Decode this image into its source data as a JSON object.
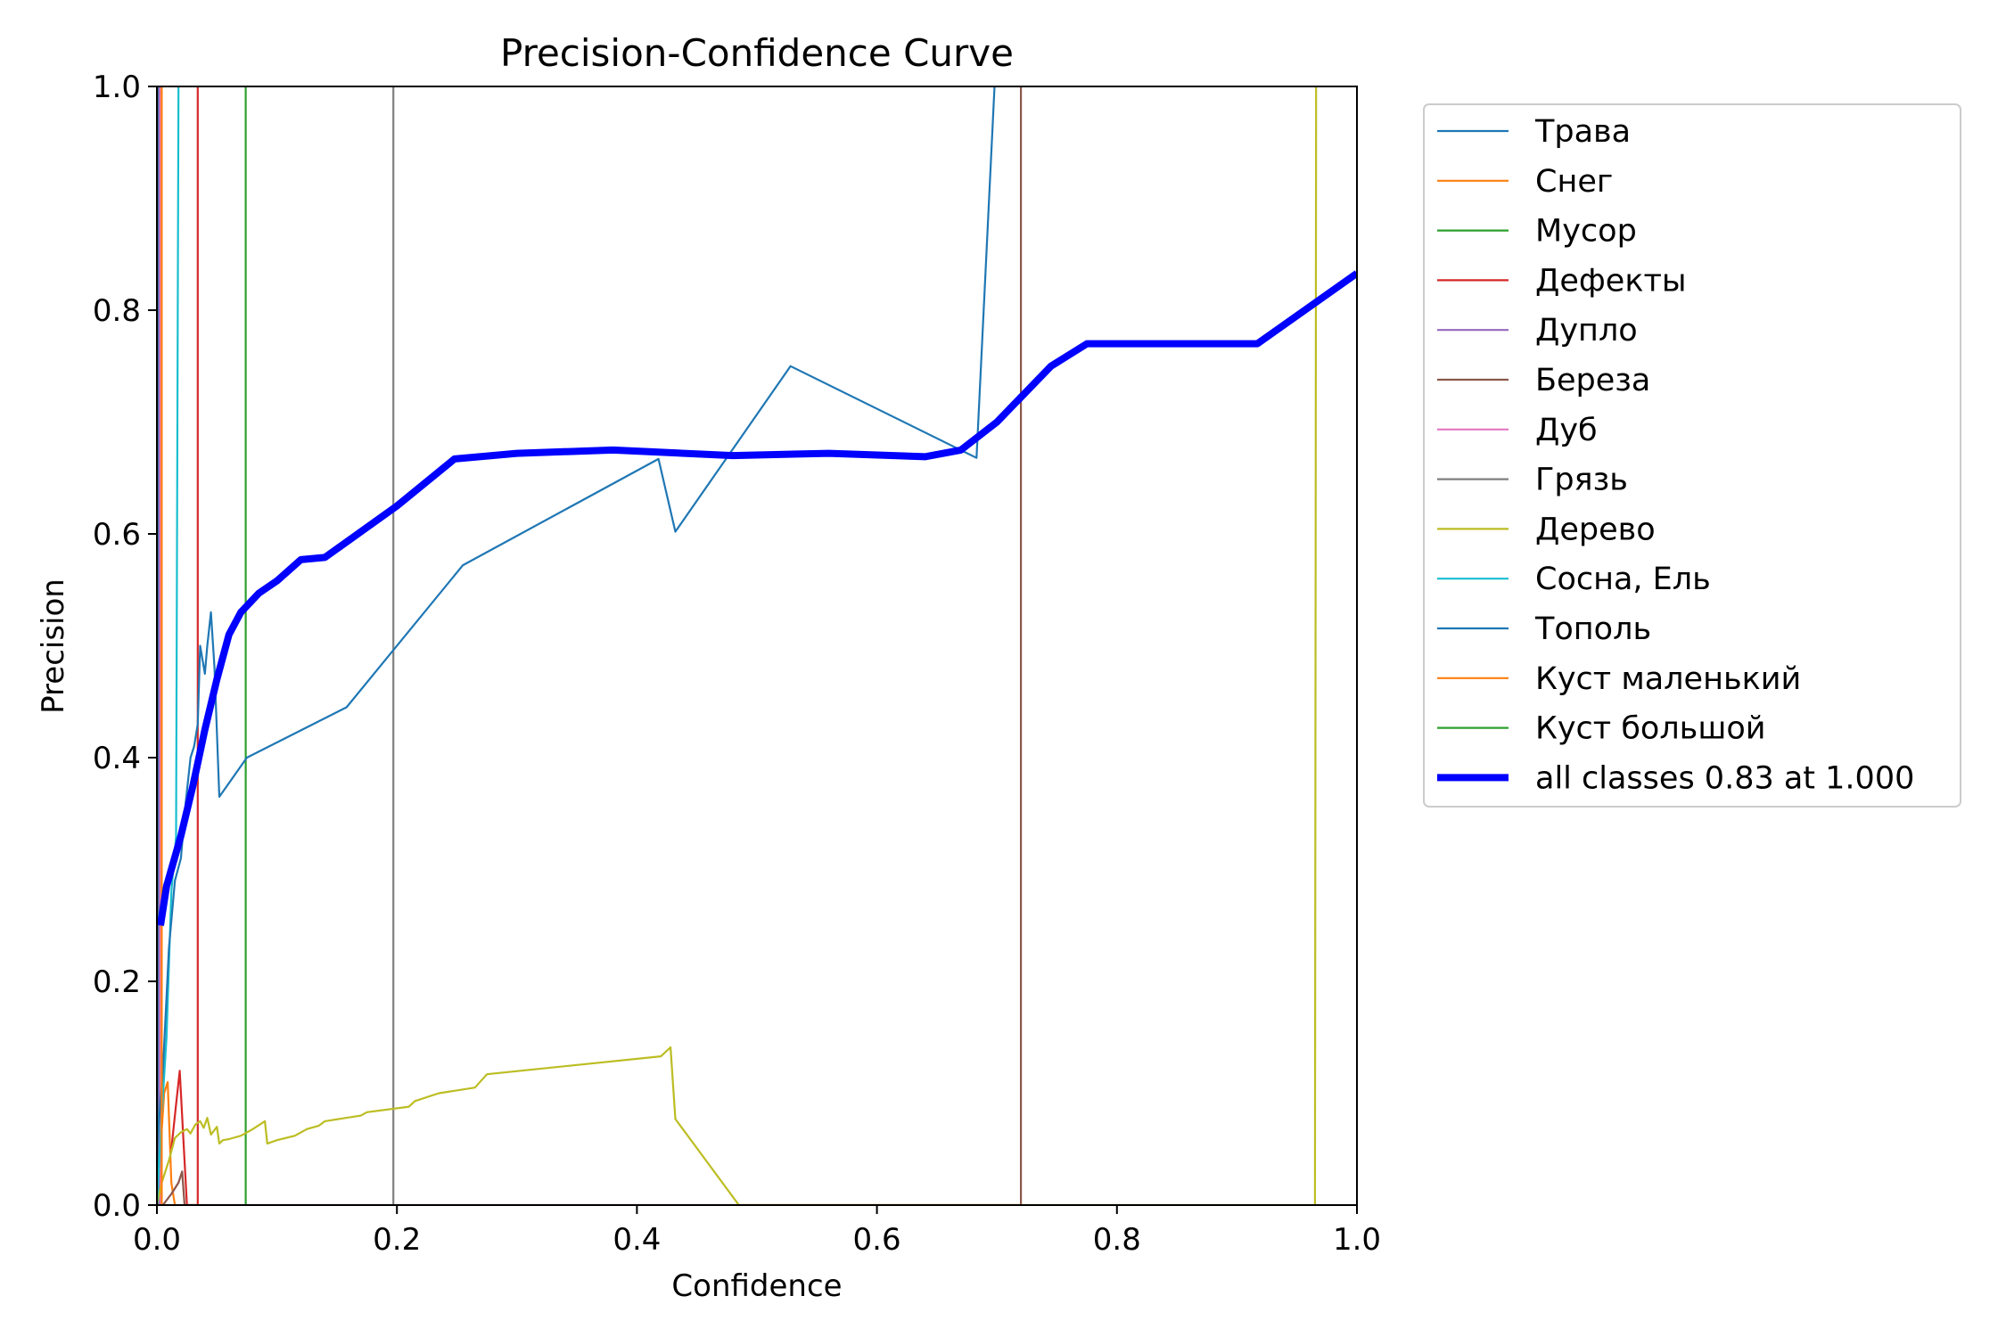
{
  "chart_data": {
    "type": "line",
    "title": "Precision-Confidence Curve",
    "xlabel": "Confidence",
    "ylabel": "Precision",
    "xlim": [
      0,
      1
    ],
    "ylim": [
      0,
      1
    ],
    "x_ticks": [
      "0.0",
      "0.2",
      "0.4",
      "0.6",
      "0.8",
      "1.0"
    ],
    "y_ticks": [
      "0.0",
      "0.2",
      "0.4",
      "0.6",
      "0.8",
      "1.0"
    ],
    "grid": false,
    "legend_position": "outside-right",
    "series": [
      {
        "name": "Трава",
        "color": "#1f77b4",
        "linewidth": "thin",
        "points": [
          [
            0.001,
            0
          ],
          [
            0.001,
            1.0
          ]
        ]
      },
      {
        "name": "Снег",
        "color": "#ff7f0e",
        "linewidth": "thin",
        "points": [
          [
            0.0,
            0.0
          ],
          [
            0.003,
            0.05
          ],
          [
            0.006,
            0.1
          ],
          [
            0.009,
            0.11
          ],
          [
            0.012,
            0.02
          ],
          [
            0.015,
            0.0
          ]
        ]
      },
      {
        "name": "Мусор",
        "color": "#2ca02c",
        "linewidth": "thin",
        "points": [
          [
            0.074,
            0
          ],
          [
            0.074,
            1.0
          ]
        ]
      },
      {
        "name": "Дефекты",
        "color": "#d62728",
        "linewidth": "thin",
        "points": [
          [
            0.012,
            0.05
          ],
          [
            0.016,
            0.09
          ],
          [
            0.019,
            0.12
          ],
          [
            0.022,
            0.06
          ],
          [
            0.025,
            0.0
          ],
          [
            0.034,
            0
          ],
          [
            0.034,
            1.0
          ]
        ]
      },
      {
        "name": "Дупло",
        "color": "#9467bd",
        "linewidth": "thin",
        "points": [
          [
            0.002,
            0
          ],
          [
            0.002,
            1.0
          ]
        ]
      },
      {
        "name": "Береза",
        "color": "#8c564b",
        "linewidth": "thin",
        "points": [
          [
            0.005,
            0.0
          ],
          [
            0.012,
            0.01
          ],
          [
            0.018,
            0.02
          ],
          [
            0.021,
            0.03
          ],
          [
            0.023,
            0.0
          ],
          [
            0.72,
            0
          ],
          [
            0.72,
            1.0
          ]
        ]
      },
      {
        "name": "Дуб",
        "color": "#e377c2",
        "linewidth": "thin",
        "points": [
          [
            0.003,
            0
          ],
          [
            0.003,
            1.0
          ]
        ]
      },
      {
        "name": "Грязь",
        "color": "#7f7f7f",
        "linewidth": "thin",
        "points": [
          [
            0.197,
            0
          ],
          [
            0.197,
            1.0
          ]
        ]
      },
      {
        "name": "Дерево",
        "color": "#bcbd22",
        "linewidth": "thin",
        "points": [
          [
            0.0,
            0.0
          ],
          [
            0.004,
            0.02
          ],
          [
            0.01,
            0.04
          ],
          [
            0.015,
            0.06
          ],
          [
            0.02,
            0.065
          ],
          [
            0.025,
            0.068
          ],
          [
            0.028,
            0.064
          ],
          [
            0.032,
            0.072
          ],
          [
            0.036,
            0.075
          ],
          [
            0.039,
            0.069
          ],
          [
            0.042,
            0.078
          ],
          [
            0.045,
            0.063
          ],
          [
            0.05,
            0.07
          ],
          [
            0.052,
            0.055
          ],
          [
            0.055,
            0.058
          ],
          [
            0.06,
            0.059
          ],
          [
            0.07,
            0.062
          ],
          [
            0.08,
            0.068
          ],
          [
            0.09,
            0.075
          ],
          [
            0.092,
            0.055
          ],
          [
            0.1,
            0.058
          ],
          [
            0.115,
            0.062
          ],
          [
            0.125,
            0.068
          ],
          [
            0.135,
            0.071
          ],
          [
            0.14,
            0.075
          ],
          [
            0.17,
            0.08
          ],
          [
            0.175,
            0.083
          ],
          [
            0.21,
            0.088
          ],
          [
            0.215,
            0.093
          ],
          [
            0.235,
            0.1
          ],
          [
            0.265,
            0.105
          ],
          [
            0.275,
            0.117
          ],
          [
            0.42,
            0.133
          ],
          [
            0.428,
            0.141
          ],
          [
            0.432,
            0.077
          ],
          [
            0.485,
            0.0
          ],
          [
            0.965,
            0.0
          ],
          [
            0.966,
            1.0
          ]
        ]
      },
      {
        "name": "Сосна, Ель",
        "color": "#17becf",
        "linewidth": "thin",
        "points": [
          [
            0.0,
            0.0
          ],
          [
            0.004,
            0.08
          ],
          [
            0.008,
            0.15
          ],
          [
            0.012,
            0.28
          ],
          [
            0.016,
            0.33
          ],
          [
            0.018,
            1.0
          ]
        ]
      },
      {
        "name": "Тополь",
        "color": "#1f77b4",
        "linewidth": "thin",
        "points": [
          [
            0.0,
            0.05
          ],
          [
            0.005,
            0.12
          ],
          [
            0.01,
            0.23
          ],
          [
            0.015,
            0.29
          ],
          [
            0.02,
            0.31
          ],
          [
            0.024,
            0.36
          ],
          [
            0.028,
            0.4
          ],
          [
            0.031,
            0.41
          ],
          [
            0.034,
            0.43
          ],
          [
            0.036,
            0.5
          ],
          [
            0.04,
            0.475
          ],
          [
            0.042,
            0.5
          ],
          [
            0.045,
            0.53
          ],
          [
            0.048,
            0.48
          ],
          [
            0.052,
            0.365
          ],
          [
            0.075,
            0.4
          ],
          [
            0.158,
            0.445
          ],
          [
            0.255,
            0.572
          ],
          [
            0.418,
            0.667
          ],
          [
            0.432,
            0.602
          ],
          [
            0.528,
            0.75
          ],
          [
            0.683,
            0.668
          ],
          [
            0.698,
            1.0
          ]
        ]
      },
      {
        "name": "Куст маленький",
        "color": "#ff7f0e",
        "linewidth": "thin",
        "points": [
          [
            0.004,
            0
          ],
          [
            0.004,
            1.0
          ]
        ]
      },
      {
        "name": "Куст большой",
        "color": "#2ca02c",
        "linewidth": "thin",
        "points": [
          [
            0.0,
            0
          ],
          [
            0.0,
            1.0
          ]
        ]
      },
      {
        "name": "all classes 0.83 at 1.000",
        "color": "#0000ff",
        "linewidth": "thick",
        "points": [
          [
            0.003,
            0.25
          ],
          [
            0.008,
            0.285
          ],
          [
            0.02,
            0.33
          ],
          [
            0.03,
            0.375
          ],
          [
            0.04,
            0.425
          ],
          [
            0.05,
            0.47
          ],
          [
            0.06,
            0.51
          ],
          [
            0.07,
            0.53
          ],
          [
            0.085,
            0.547
          ],
          [
            0.1,
            0.558
          ],
          [
            0.12,
            0.577
          ],
          [
            0.14,
            0.579
          ],
          [
            0.2,
            0.625
          ],
          [
            0.248,
            0.667
          ],
          [
            0.3,
            0.672
          ],
          [
            0.38,
            0.675
          ],
          [
            0.48,
            0.67
          ],
          [
            0.56,
            0.672
          ],
          [
            0.64,
            0.669
          ],
          [
            0.67,
            0.675
          ],
          [
            0.7,
            0.7
          ],
          [
            0.745,
            0.75
          ],
          [
            0.775,
            0.77
          ],
          [
            0.917,
            0.77
          ],
          [
            1.0,
            0.833
          ]
        ]
      }
    ]
  }
}
